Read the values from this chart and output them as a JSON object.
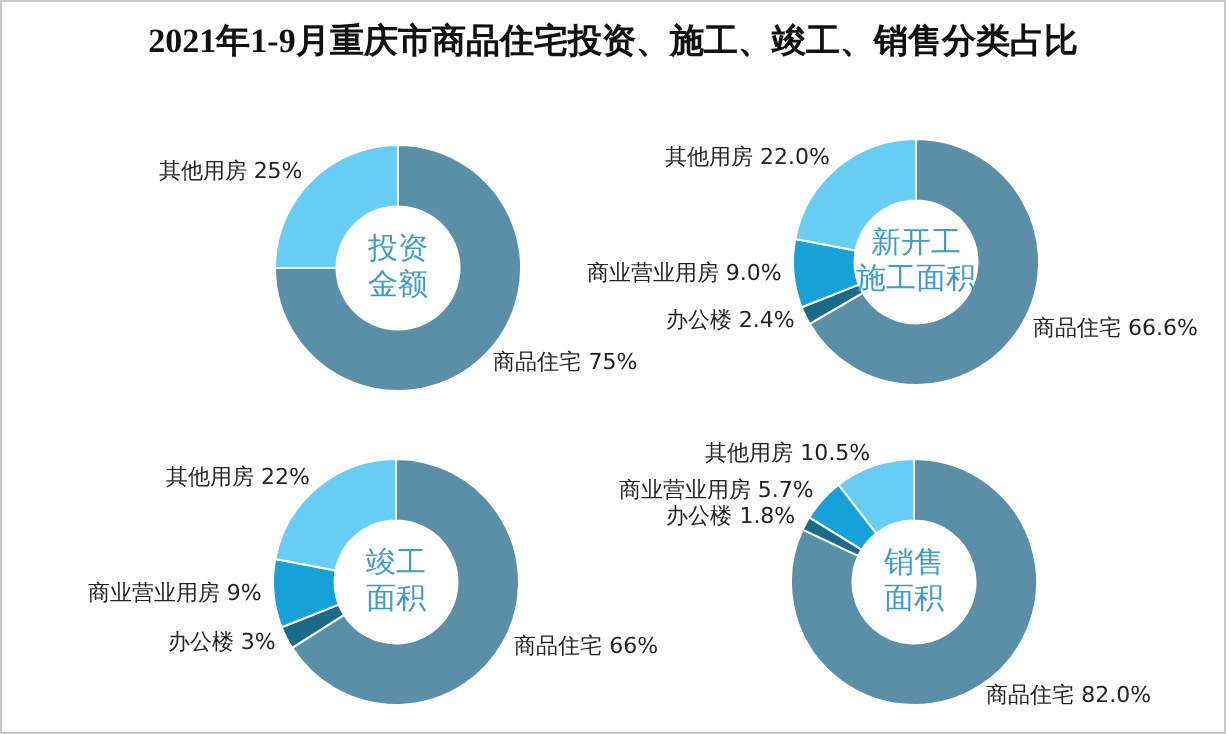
{
  "chart_data": [
    {
      "type": "donut",
      "title": "2021年1-9月重庆市商品住宅投资、施工、竣工、销售分类占比",
      "annotations": [
        "投资金额"
      ],
      "categories": [
        "商品住宅",
        "其他用房"
      ],
      "values": [
        75,
        25
      ],
      "value_labels": [
        "75%",
        "25%"
      ],
      "colors": [
        "#5b8fa8",
        "#67cdf4"
      ]
    },
    {
      "type": "donut",
      "annotations": [
        "新开工施工面积"
      ],
      "categories": [
        "商品住宅",
        "办公楼",
        "商业营业用房",
        "其他用房"
      ],
      "values": [
        66.6,
        2.4,
        9.0,
        22.0
      ],
      "value_labels": [
        "66.6%",
        "2.4%",
        "9.0%",
        "22.0%"
      ],
      "colors": [
        "#5b8fa8",
        "#1b6a86",
        "#16a2d8",
        "#67cdf4"
      ]
    },
    {
      "type": "donut",
      "annotations": [
        "竣工面积"
      ],
      "categories": [
        "商品住宅",
        "办公楼",
        "商业营业用房",
        "其他用房"
      ],
      "values": [
        66,
        3,
        9,
        22
      ],
      "value_labels": [
        "66%",
        "3%",
        "9%",
        "22%"
      ],
      "colors": [
        "#5b8fa8",
        "#1b6a86",
        "#16a2d8",
        "#67cdf4"
      ]
    },
    {
      "type": "donut",
      "annotations": [
        "销售面积"
      ],
      "categories": [
        "商品住宅",
        "办公楼",
        "商业营业用房",
        "其他用房"
      ],
      "values": [
        82.0,
        1.8,
        5.7,
        10.5
      ],
      "value_labels": [
        "82.0%",
        "1.8%",
        "5.7%",
        "10.5%"
      ],
      "colors": [
        "#5b8fa8",
        "#1b6a86",
        "#16a2d8",
        "#67cdf4"
      ]
    }
  ]
}
